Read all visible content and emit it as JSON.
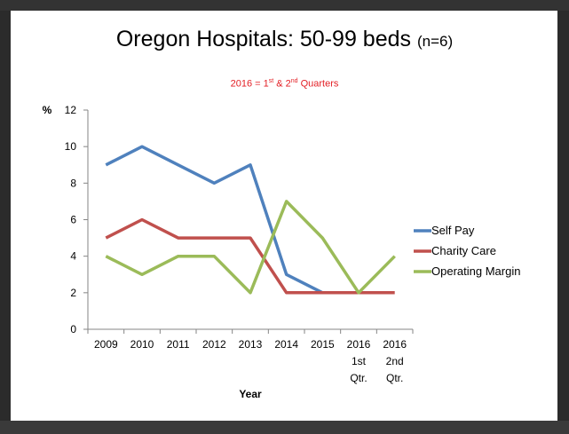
{
  "slide": {
    "title_main": "Oregon Hospitals:  50-99 beds",
    "title_n": "(n=6)",
    "subtitle_prefix": "2016 = 1",
    "subtitle_sup1": "st",
    "subtitle_mid": " & 2",
    "subtitle_sup2": "nd",
    "subtitle_suffix": " Quarters"
  },
  "chart_data": {
    "type": "line",
    "title": "Oregon Hospitals:  50-99 beds (n=6)",
    "subtitle": "2016 = 1st & 2nd Quarters",
    "xlabel": "Year",
    "ylabel": "%",
    "ylim": [
      0,
      12
    ],
    "yticks": [
      "0",
      "2",
      "4",
      "6",
      "8",
      "10",
      "12"
    ],
    "categories": [
      "2009",
      "2010",
      "2011",
      "2012",
      "2013",
      "2014",
      "2015",
      "2016 1st Qtr.",
      "2016 2nd Qtr."
    ],
    "category_lines": [
      [
        "2009"
      ],
      [
        "2010"
      ],
      [
        "2011"
      ],
      [
        "2012"
      ],
      [
        "2013"
      ],
      [
        "2014"
      ],
      [
        "2015"
      ],
      [
        "2016",
        "1st",
        "Qtr."
      ],
      [
        "2016",
        "2nd",
        "Qtr."
      ]
    ],
    "series": [
      {
        "name": "Self Pay",
        "color": "#4f81bd",
        "values": [
          9,
          10,
          9,
          8,
          9,
          3,
          2,
          2,
          null
        ]
      },
      {
        "name": "Charity Care",
        "color": "#c0504d",
        "values": [
          5,
          6,
          5,
          5,
          5,
          2,
          2,
          2,
          2
        ]
      },
      {
        "name": "Operating Margin",
        "color": "#9bbb59",
        "values": [
          4,
          3,
          4,
          4,
          2,
          7,
          5,
          2,
          4
        ]
      }
    ],
    "grid": false,
    "legend_position": "right"
  }
}
